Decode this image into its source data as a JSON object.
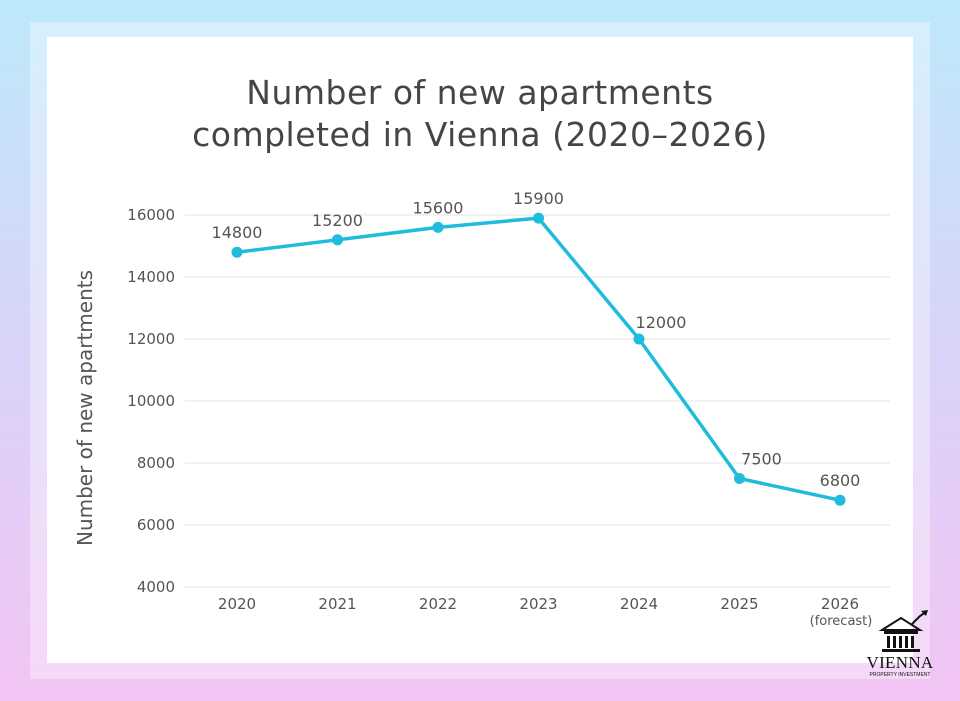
{
  "chart_data": {
    "type": "line",
    "title": [
      "Number of new apartments",
      "completed in Vienna (2020–2026)"
    ],
    "ylabel": "Number of new apartments",
    "xlabel": "",
    "categories": [
      "2020",
      "2021",
      "2022",
      "2023",
      "2024",
      "2025",
      "2026"
    ],
    "category_sublabels": [
      "",
      "",
      "",
      "",
      "",
      "",
      "(forecast)"
    ],
    "series": [
      {
        "values": [
          14800,
          15200,
          15600,
          15900,
          12000,
          7500,
          6800
        ],
        "color": "#1fbcdb"
      }
    ],
    "ylim": [
      4000,
      16000
    ],
    "yticks": [
      4000,
      6000,
      8000,
      10000,
      12000,
      14000,
      16000
    ],
    "grid": true
  },
  "logo": {
    "name": "VIENNA",
    "subtitle": "PROPERTY INVESTMENT",
    "icon": "building-chart-icon"
  }
}
